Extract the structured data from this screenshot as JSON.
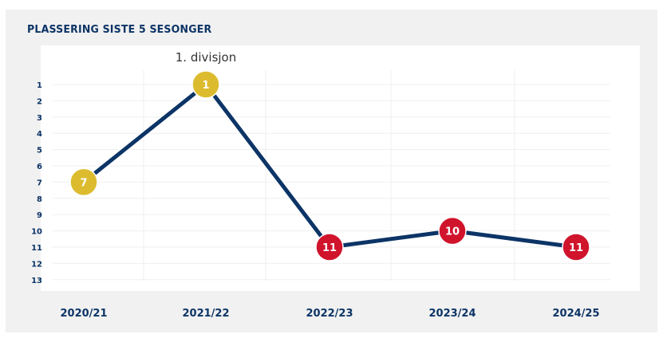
{
  "title": "PLASSERING SISTE 5 SESONGER",
  "chart_data": {
    "type": "line",
    "title": "PLASSERING SISTE 5 SESONGER",
    "categories": [
      "2020/21",
      "2021/22",
      "2022/23",
      "2023/24",
      "2024/25"
    ],
    "values": [
      7,
      1,
      11,
      10,
      11
    ],
    "value_labels": [
      "7",
      "1",
      "11",
      "10",
      "11"
    ],
    "yticks": [
      "1",
      "2",
      "3",
      "4",
      "5",
      "6",
      "7",
      "8",
      "9",
      "10",
      "11",
      "12",
      "13"
    ],
    "ylim": [
      1,
      13
    ],
    "y_inverted": true,
    "grid": true,
    "annotations": [
      {
        "text": "1. divisjon",
        "category": "2021/22"
      }
    ],
    "marker_colors": [
      "#dcbc2e",
      "#dcbc2e",
      "#d0142c",
      "#d0142c",
      "#d0142c"
    ],
    "line_color": "#0c3466",
    "text_color": "#0c3466"
  }
}
